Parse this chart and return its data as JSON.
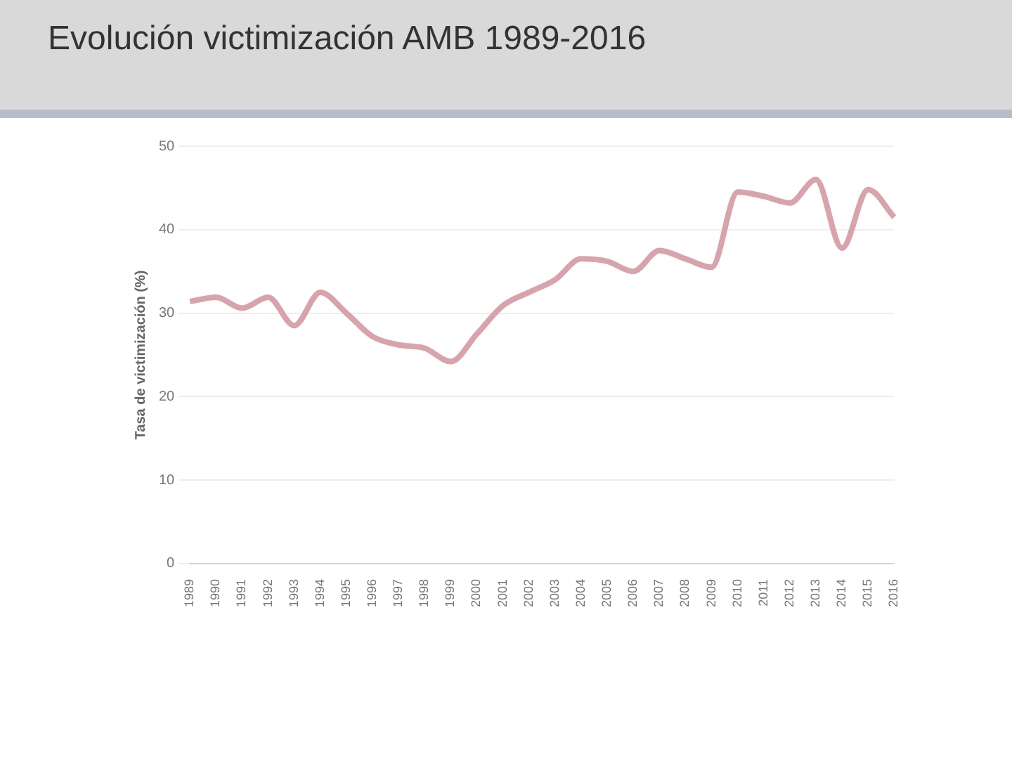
{
  "chart_data": {
    "type": "line",
    "title": "Evolución victimización AMB 1989-2016",
    "ylabel": "Tasa de victimización (%)",
    "categories": [
      "1989",
      "1990",
      "1991",
      "1992",
      "1993",
      "1994",
      "1995",
      "1996",
      "1997",
      "1998",
      "1999",
      "2000",
      "2001",
      "2002",
      "2003",
      "2004",
      "2005",
      "2006",
      "2007",
      "2008",
      "2009",
      "2010",
      "2011",
      "2012",
      "2013",
      "2014",
      "2015",
      "2016"
    ],
    "series": [
      {
        "color": "#d9a3ab",
        "values": [
          31.4,
          31.9,
          30.6,
          31.9,
          28.5,
          32.5,
          30.0,
          27.2,
          26.2,
          25.8,
          24.2,
          27.5,
          30.9,
          32.5,
          34.0,
          36.5,
          36.2,
          35.0,
          37.5,
          36.5,
          35.5,
          44.5,
          44.0,
          43.2,
          46.0,
          37.8,
          44.8,
          41.5
        ]
      }
    ],
    "ylim": [
      0,
      50
    ],
    "yticks": [
      0,
      10,
      20,
      30,
      40,
      50
    ],
    "grid": "y",
    "legend": false,
    "marker": "none",
    "line_style": "solid"
  }
}
